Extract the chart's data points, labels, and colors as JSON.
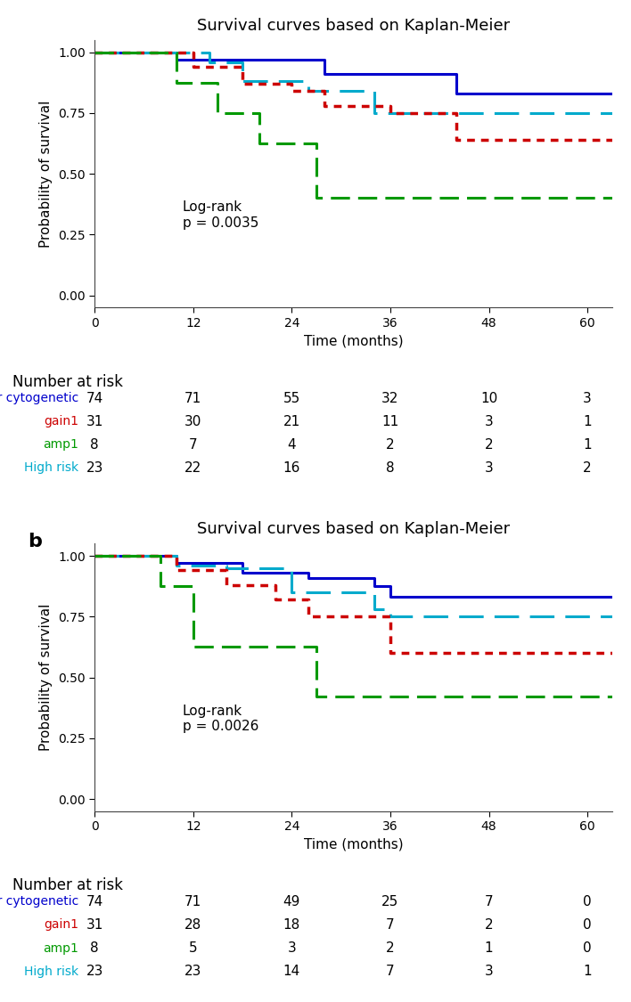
{
  "title": "Survival curves based on Kaplan-Meier",
  "xlabel": "Time (months)",
  "ylabel": "Probability of survival",
  "xlim": [
    0,
    63
  ],
  "ylim": [
    -0.05,
    1.05
  ],
  "xticks": [
    0,
    12,
    24,
    36,
    48,
    60
  ],
  "yticks": [
    0.0,
    0.25,
    0.5,
    0.75,
    1.0
  ],
  "panel_a": {
    "logrank_text": "Log-rank\np = 0.0035",
    "curves": {
      "other": {
        "color": "#0000CC",
        "lw": 2.2,
        "style": "solid",
        "x": [
          0,
          10,
          10,
          28,
          28,
          44,
          44,
          63
        ],
        "y": [
          1.0,
          1.0,
          0.97,
          0.97,
          0.91,
          0.91,
          0.83,
          0.83
        ]
      },
      "gain1": {
        "color": "#CC0000",
        "lw": 2.5,
        "style": "dotted",
        "x": [
          0,
          12,
          12,
          18,
          18,
          24,
          24,
          28,
          28,
          36,
          36,
          44,
          44,
          63
        ],
        "y": [
          1.0,
          1.0,
          0.94,
          0.94,
          0.87,
          0.87,
          0.84,
          0.84,
          0.78,
          0.78,
          0.75,
          0.75,
          0.64,
          0.64
        ]
      },
      "amp1": {
        "color": "#009900",
        "lw": 2.2,
        "style": "dashed_long",
        "x": [
          0,
          10,
          10,
          15,
          15,
          20,
          20,
          27,
          27,
          63
        ],
        "y": [
          1.0,
          1.0,
          0.875,
          0.875,
          0.75,
          0.75,
          0.625,
          0.625,
          0.4,
          0.4
        ]
      },
      "highrisk": {
        "color": "#00AACC",
        "lw": 2.2,
        "style": "dashed_medium",
        "x": [
          0,
          14,
          14,
          18,
          18,
          26,
          26,
          34,
          34,
          63
        ],
        "y": [
          1.0,
          1.0,
          0.96,
          0.96,
          0.88,
          0.88,
          0.84,
          0.84,
          0.75,
          0.75
        ]
      }
    },
    "risk_table": {
      "labels": [
        "Other cytogenetic",
        "gain1",
        "amp1",
        "High risk"
      ],
      "colors": [
        "#0000CC",
        "#CC0000",
        "#009900",
        "#00AACC"
      ],
      "times": [
        0,
        12,
        24,
        36,
        48,
        60
      ],
      "counts": [
        [
          74,
          71,
          55,
          32,
          10,
          3
        ],
        [
          31,
          30,
          21,
          11,
          3,
          1
        ],
        [
          8,
          7,
          4,
          2,
          2,
          1
        ],
        [
          23,
          22,
          16,
          8,
          3,
          2
        ]
      ]
    }
  },
  "panel_b": {
    "logrank_text": "Log-rank\np = 0.0026",
    "curves": {
      "other": {
        "color": "#0000CC",
        "lw": 2.2,
        "style": "solid",
        "x": [
          0,
          10,
          10,
          18,
          18,
          26,
          26,
          34,
          34,
          36,
          36,
          63
        ],
        "y": [
          1.0,
          1.0,
          0.97,
          0.97,
          0.93,
          0.93,
          0.91,
          0.91,
          0.875,
          0.875,
          0.83,
          0.83
        ]
      },
      "gain1": {
        "color": "#CC0000",
        "lw": 2.5,
        "style": "dotted",
        "x": [
          0,
          10,
          10,
          16,
          16,
          22,
          22,
          26,
          26,
          36,
          36,
          63
        ],
        "y": [
          1.0,
          1.0,
          0.94,
          0.94,
          0.88,
          0.88,
          0.82,
          0.82,
          0.75,
          0.75,
          0.6,
          0.6
        ]
      },
      "amp1": {
        "color": "#009900",
        "lw": 2.2,
        "style": "dashed_long",
        "x": [
          0,
          8,
          8,
          12,
          12,
          18,
          18,
          27,
          27,
          63
        ],
        "y": [
          1.0,
          1.0,
          0.875,
          0.875,
          0.625,
          0.625,
          0.625,
          0.625,
          0.42,
          0.42
        ]
      },
      "highrisk": {
        "color": "#00AACC",
        "lw": 2.2,
        "style": "dashed_medium",
        "x": [
          0,
          10,
          10,
          16,
          16,
          24,
          24,
          34,
          34,
          36,
          36,
          63
        ],
        "y": [
          1.0,
          1.0,
          0.96,
          0.96,
          0.95,
          0.95,
          0.85,
          0.85,
          0.78,
          0.78,
          0.75,
          0.75
        ]
      }
    },
    "risk_table": {
      "labels": [
        "Other cytogenetic",
        "gain1",
        "amp1",
        "High risk"
      ],
      "colors": [
        "#0000CC",
        "#CC0000",
        "#009900",
        "#00AACC"
      ],
      "times": [
        0,
        12,
        24,
        36,
        48,
        60
      ],
      "counts": [
        [
          74,
          71,
          49,
          25,
          7,
          0
        ],
        [
          31,
          28,
          18,
          7,
          2,
          0
        ],
        [
          8,
          5,
          3,
          2,
          1,
          0
        ],
        [
          23,
          23,
          14,
          7,
          3,
          1
        ]
      ]
    }
  },
  "panel_b_label": "b",
  "bg_color": "#FFFFFF",
  "text_color": "#000000",
  "logrank_fontsize": 11,
  "label_fontsize": 11,
  "tick_fontsize": 10,
  "title_fontsize": 13,
  "risk_table_fontsize": 11,
  "risk_label_fontsize": 10,
  "number_at_risk_fontsize": 12
}
